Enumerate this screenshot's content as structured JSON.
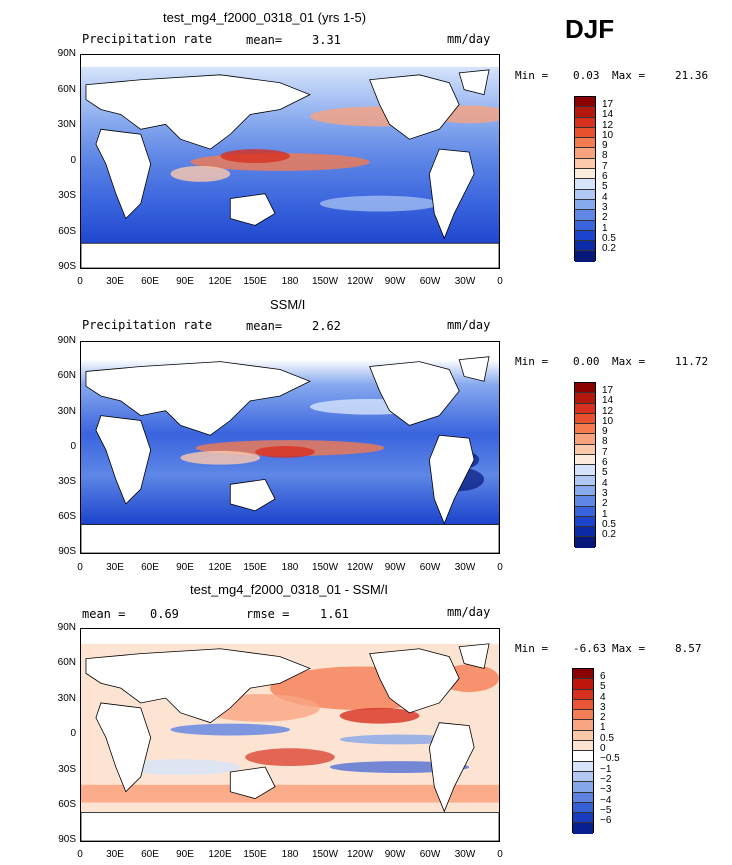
{
  "season": "DJF",
  "panels": [
    {
      "title": "test_mg4_f2000_0318_01 (yrs 1-5)",
      "left_label": "Precipitation rate",
      "stat_label": "mean=",
      "stat_value": "3.31",
      "units": "mm/day",
      "min_label": "Min =",
      "min_value": "0.03",
      "max_label": "Max =",
      "max_value": "21.36",
      "levels": [
        "17",
        "14",
        "12",
        "10",
        "9",
        "8",
        "7",
        "6",
        "5",
        "4",
        "3",
        "2",
        "1",
        "0.5",
        "0.2"
      ]
    },
    {
      "title": "SSM/I",
      "left_label": "Precipitation rate",
      "stat_label": "mean=",
      "stat_value": "2.62",
      "units": "mm/day",
      "min_label": "Min =",
      "min_value": "0.00",
      "max_label": "Max =",
      "max_value": "11.72",
      "levels": [
        "17",
        "14",
        "12",
        "10",
        "9",
        "8",
        "7",
        "6",
        "5",
        "4",
        "3",
        "2",
        "1",
        "0.5",
        "0.2"
      ]
    },
    {
      "title": "test_mg4_f2000_0318_01 - SSM/I",
      "left_label": "mean =",
      "left_value": "0.69",
      "stat_label": "rmse =",
      "stat_value": "1.61",
      "units": "mm/day",
      "min_label": "Min =",
      "min_value": "-6.63",
      "max_label": "Max =",
      "max_value": "8.57",
      "levels": [
        "6",
        "5",
        "4",
        "3",
        "2",
        "1",
        "0.5",
        "0",
        "−0.5",
        "−1",
        "−2",
        "−3",
        "−4",
        "−5",
        "−6"
      ]
    }
  ],
  "lat_ticks": [
    "90N",
    "60N",
    "30N",
    "0",
    "30S",
    "60S",
    "90S"
  ],
  "lon_ticks": [
    "0",
    "30E",
    "60E",
    "90E",
    "120E",
    "150E",
    "180",
    "150W",
    "120W",
    "90W",
    "60W",
    "30W",
    "0"
  ],
  "colors": {
    "abs_scale": [
      "#8b0000",
      "#b2180c",
      "#d7301f",
      "#e8502e",
      "#f47a50",
      "#f9a27e",
      "#fcc9ad",
      "#fdebdc",
      "#d6e4fb",
      "#b0c9f4",
      "#87a9ee",
      "#5e87e6",
      "#3a64de",
      "#1c43cc",
      "#0a2aa8",
      "#06197a"
    ],
    "diff_scale": [
      "#8b0000",
      "#c0150a",
      "#d7301f",
      "#ea5535",
      "#f47d55",
      "#f9a583",
      "#fcc8aa",
      "#fde4d2",
      "#ffffff",
      "#d7e4fa",
      "#b2c8f2",
      "#86a6ea",
      "#5c82e2",
      "#3760d6",
      "#1a3cbf",
      "#081f8f"
    ]
  }
}
